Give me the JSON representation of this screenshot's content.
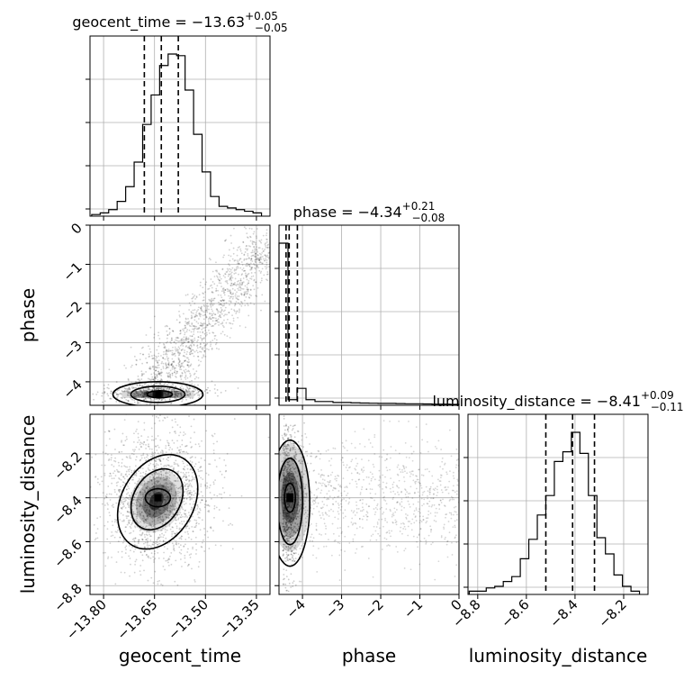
{
  "chart_data": {
    "type": "corner",
    "parameters": [
      "geocent_time",
      "phase",
      "luminosity_distance"
    ],
    "grid": true,
    "marginals": [
      {
        "parameter": "geocent_time",
        "title_main": "geocent_time = −13.63",
        "title_sup": "+0.05",
        "title_sub": "−0.05",
        "median": -13.63,
        "quantiles": [
          -13.68,
          -13.63,
          -13.58
        ],
        "xlim": [
          -13.84,
          -13.31
        ],
        "bin_edges": [
          -13.835,
          -13.81,
          -13.785,
          -13.76,
          -13.735,
          -13.71,
          -13.685,
          -13.66,
          -13.635,
          -13.61,
          -13.585,
          -13.56,
          -13.535,
          -13.51,
          -13.485,
          -13.46,
          -13.435,
          -13.41,
          -13.385,
          -13.36,
          -13.335
        ],
        "counts": [
          0.01,
          0.02,
          0.04,
          0.09,
          0.18,
          0.33,
          0.56,
          0.74,
          0.92,
          0.99,
          0.98,
          0.77,
          0.5,
          0.27,
          0.12,
          0.06,
          0.05,
          0.04,
          0.03,
          0.02
        ]
      },
      {
        "parameter": "phase",
        "title_main": "phase = −4.34",
        "title_sup": "+0.21",
        "title_sub": "−0.08",
        "median": -4.34,
        "quantiles": [
          -4.42,
          -4.34,
          -4.13
        ],
        "xlim": [
          -4.6,
          0.0
        ],
        "bin_edges": [
          -4.6,
          -4.37,
          -4.14,
          -3.91,
          -3.68,
          -3.45,
          -3.22,
          -2.99,
          -2.76,
          -2.53,
          -2.3,
          -2.07,
          -1.84,
          -1.61,
          -1.38,
          -1.15,
          -0.92,
          -0.69,
          -0.46,
          -0.23,
          0.0
        ],
        "counts": [
          0.86,
          0.03,
          0.09,
          0.03,
          0.02,
          0.02,
          0.015,
          0.015,
          0.013,
          0.012,
          0.011,
          0.01,
          0.01,
          0.009,
          0.008,
          0.008,
          0.007,
          0.006,
          0.006,
          0.005
        ]
      },
      {
        "parameter": "luminosity_distance",
        "title_main": "luminosity_distance = −8.41",
        "title_sup": "+0.09",
        "title_sub": "−0.11",
        "median": -8.41,
        "quantiles": [
          -8.52,
          -8.41,
          -8.32
        ],
        "xlim": [
          -8.84,
          -8.1
        ],
        "bin_edges": [
          -8.835,
          -8.8,
          -8.765,
          -8.73,
          -8.695,
          -8.66,
          -8.625,
          -8.59,
          -8.555,
          -8.52,
          -8.485,
          -8.45,
          -8.415,
          -8.38,
          -8.345,
          -8.31,
          -8.275,
          -8.24,
          -8.205,
          -8.17,
          -8.135
        ],
        "counts": [
          0.02,
          0.02,
          0.04,
          0.05,
          0.08,
          0.11,
          0.22,
          0.34,
          0.49,
          0.61,
          0.82,
          0.88,
          1.0,
          0.87,
          0.61,
          0.35,
          0.25,
          0.12,
          0.05,
          0.02
        ]
      }
    ],
    "axes": {
      "geocent_time": {
        "label": "geocent_time",
        "ticks": [
          -13.8,
          -13.65,
          -13.5,
          -13.35
        ],
        "tick_labels": [
          "−13.80",
          "−13.65",
          "−13.50",
          "−13.35"
        ]
      },
      "phase": {
        "label": "phase",
        "ticks": [
          -4,
          -3,
          -2,
          -1,
          0
        ],
        "tick_labels": [
          "−4",
          "−3",
          "−2",
          "−1",
          "0"
        ],
        "ylim": [
          -4.6,
          0.0
        ]
      },
      "luminosity_distance": {
        "label": "luminosity_distance",
        "ticks": [
          -8.8,
          -8.6,
          -8.4,
          -8.2
        ],
        "tick_labels": [
          "−8.8",
          "−8.6",
          "−8.4",
          "−8.2"
        ],
        "ylim": [
          -8.84,
          -8.02
        ]
      }
    },
    "joint": [
      {
        "x": "geocent_time",
        "y": "phase",
        "peak": [
          -13.64,
          -4.32
        ]
      },
      {
        "x": "geocent_time",
        "y": "luminosity_distance",
        "peak": [
          -13.64,
          -8.4
        ]
      },
      {
        "x": "phase",
        "y": "luminosity_distance",
        "peak": [
          -4.32,
          -8.4
        ]
      }
    ]
  }
}
